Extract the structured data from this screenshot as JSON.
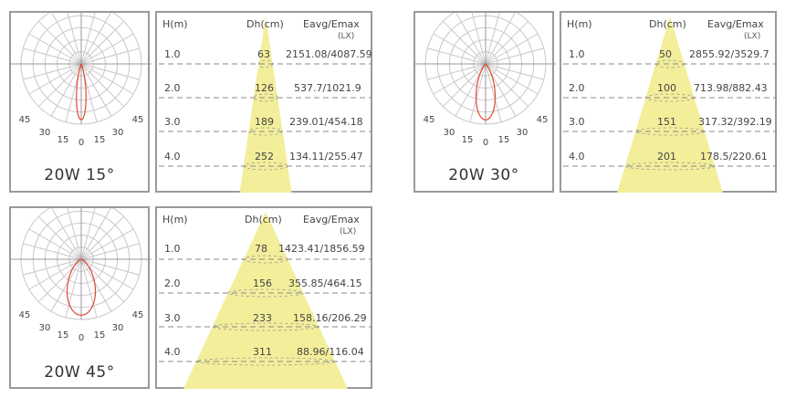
{
  "colors": {
    "beam": "#f3ee9a",
    "curve": "#e0472f",
    "border": "#9a9a9a",
    "grid": "#c8c8c8"
  },
  "headers": {
    "h": "H(m)",
    "dh": "Dh(cm)",
    "e": "Eavg/Emax",
    "unit": "(LX)"
  },
  "angle_labels": [
    "45",
    "30",
    "15",
    "0",
    "15",
    "30",
    "45"
  ],
  "lamps": [
    {
      "caption": "20W 15°",
      "beam_angle": 15,
      "rows": [
        {
          "h": "1.0",
          "dh": "63",
          "e": "2151.08/4087.59"
        },
        {
          "h": "2.0",
          "dh": "126",
          "e": "537.7/1021.9"
        },
        {
          "h": "3.0",
          "dh": "189",
          "e": "239.01/454.18"
        },
        {
          "h": "4.0",
          "dh": "252",
          "e": "134.11/255.47"
        }
      ]
    },
    {
      "caption": "20W 30°",
      "beam_angle": 30,
      "rows": [
        {
          "h": "1.0",
          "dh": "50",
          "e": "2855.92/3529.7"
        },
        {
          "h": "2.0",
          "dh": "100",
          "e": "713.98/882.43"
        },
        {
          "h": "3.0",
          "dh": "151",
          "e": "317.32/392.19"
        },
        {
          "h": "4.0",
          "dh": "201",
          "e": "178.5/220.61"
        }
      ]
    },
    {
      "caption": "20W 45°",
      "beam_angle": 45,
      "rows": [
        {
          "h": "1.0",
          "dh": "78",
          "e": "1423.41/1856.59"
        },
        {
          "h": "2.0",
          "dh": "156",
          "e": "355.85/464.15"
        },
        {
          "h": "3.0",
          "dh": "233",
          "e": "158.16/206.29"
        },
        {
          "h": "4.0",
          "dh": "311",
          "e": "88.96/116.04"
        }
      ]
    }
  ]
}
